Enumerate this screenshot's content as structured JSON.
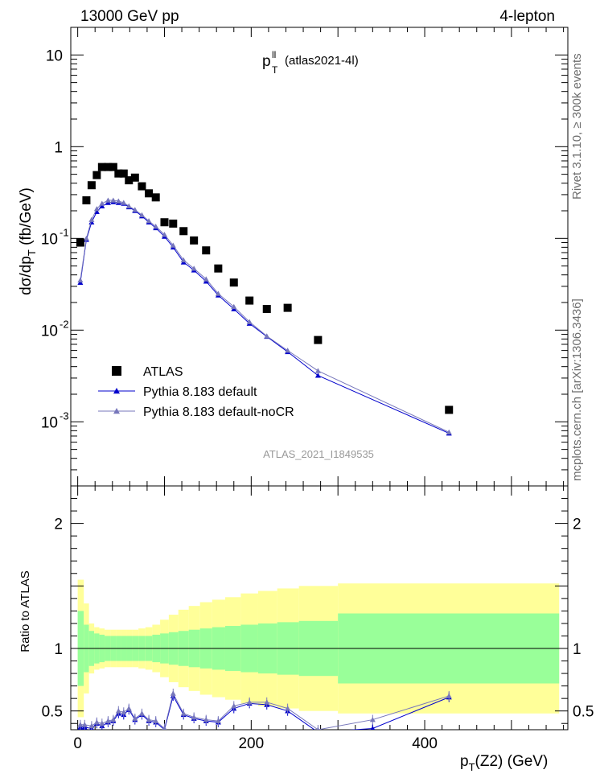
{
  "header": {
    "left": "13000 GeV pp",
    "right": "4-lepton"
  },
  "side": {
    "rivet": "Rivet 3.1.10, ≥ 300k events",
    "mcplots": "mcplots.cern.ch [arXiv:1306.3436]"
  },
  "plot": {
    "title_main": "p",
    "title_sup": "ll",
    "title_sub": "T",
    "title_rest": "(atlas2021-4l)",
    "watermark": "ATLAS_2021_I1849535"
  },
  "chart_data": {
    "type": "scatter",
    "xlabel": "p_T(Z2) (GeV)",
    "ylabel": "dσ/dp_T (fb/GeV)",
    "ratio_ylabel": "Ratio to ATLAS",
    "xlim": [
      -8,
      565
    ],
    "ylim_main": [
      0.0002,
      20
    ],
    "ylim_ratio": [
      0.35,
      2.3
    ],
    "xticks": [
      0,
      200,
      400
    ],
    "yticks_main": [
      {
        "v": 0.001,
        "base": "10",
        "exp": "-3"
      },
      {
        "v": 0.01,
        "base": "10",
        "exp": "-2"
      },
      {
        "v": 0.1,
        "base": "10",
        "exp": "-1"
      },
      {
        "v": 1,
        "base": "1",
        "exp": ""
      },
      {
        "v": 10,
        "base": "10",
        "exp": ""
      }
    ],
    "yticks_ratio": [
      {
        "v": 0.5,
        "label": "0.5"
      },
      {
        "v": 1,
        "label": "1"
      },
      {
        "v": 2,
        "label": "2"
      }
    ],
    "legend": [
      {
        "name": "ATLAS",
        "color": "#000000",
        "marker": "square"
      },
      {
        "name": "Pythia 8.183 default",
        "color": "#0000cc",
        "marker": "triangle"
      },
      {
        "name": "Pythia 8.183 default-noCR",
        "color": "#7777bb",
        "marker": "triangle"
      }
    ],
    "atlas": {
      "x": [
        3,
        10,
        16,
        22,
        28,
        35,
        41,
        47,
        53,
        59,
        66,
        74,
        82,
        90,
        100,
        110,
        122,
        134,
        148,
        162,
        180,
        198,
        218,
        242,
        277,
        428
      ],
      "y": [
        0.09,
        0.26,
        0.38,
        0.49,
        0.6,
        0.6,
        0.6,
        0.51,
        0.51,
        0.43,
        0.46,
        0.37,
        0.31,
        0.28,
        0.15,
        0.145,
        0.12,
        0.095,
        0.074,
        0.047,
        0.033,
        0.021,
        0.017,
        0.0175,
        0.0078,
        0.00135
      ]
    },
    "series": [
      {
        "name": "Pythia 8.183 default",
        "color": "#0000cc",
        "x": [
          3,
          10,
          16,
          22,
          28,
          35,
          41,
          47,
          53,
          59,
          66,
          74,
          82,
          90,
          100,
          110,
          122,
          134,
          148,
          162,
          180,
          198,
          218,
          242,
          277,
          428
        ],
        "y": [
          0.033,
          0.097,
          0.15,
          0.195,
          0.225,
          0.245,
          0.25,
          0.245,
          0.24,
          0.22,
          0.2,
          0.175,
          0.15,
          0.13,
          0.105,
          0.08,
          0.055,
          0.045,
          0.034,
          0.024,
          0.017,
          0.0118,
          0.0085,
          0.0058,
          0.0032,
          0.00075
        ],
        "ratio": [
          0.37,
          0.37,
          0.36,
          0.4,
          0.38,
          0.41,
          0.42,
          0.48,
          0.47,
          0.51,
          0.43,
          0.47,
          0.42,
          0.41,
          0.35,
          0.62,
          0.47,
          0.44,
          0.42,
          0.41,
          0.52,
          0.56,
          0.55,
          0.5,
          0.33,
          0.36,
          0.61
        ]
      },
      {
        "name": "Pythia 8.183 default-noCR",
        "color": "#7777bb",
        "x": [
          3,
          10,
          16,
          22,
          28,
          35,
          41,
          47,
          53,
          59,
          66,
          74,
          82,
          90,
          100,
          110,
          122,
          134,
          148,
          162,
          180,
          198,
          218,
          242,
          277,
          428
        ],
        "y": [
          0.035,
          0.1,
          0.16,
          0.21,
          0.24,
          0.26,
          0.26,
          0.255,
          0.245,
          0.225,
          0.205,
          0.18,
          0.155,
          0.135,
          0.11,
          0.084,
          0.058,
          0.047,
          0.036,
          0.025,
          0.018,
          0.0123,
          0.0086,
          0.006,
          0.0036,
          0.00077
        ],
        "ratio": [
          0.39,
          0.39,
          0.38,
          0.41,
          0.4,
          0.42,
          0.43,
          0.5,
          0.49,
          0.52,
          0.44,
          0.48,
          0.43,
          0.42,
          0.36,
          0.64,
          0.48,
          0.45,
          0.43,
          0.42,
          0.54,
          0.57,
          0.57,
          0.52,
          0.35,
          0.43,
          0.62
        ]
      }
    ],
    "ratio_x": [
      3,
      8,
      16,
      22,
      28,
      35,
      41,
      47,
      53,
      59,
      66,
      74,
      82,
      90,
      100,
      110,
      122,
      134,
      148,
      162,
      180,
      198,
      218,
      242,
      277,
      340,
      428
    ],
    "bands": {
      "edges": [
        0,
        7,
        13,
        19,
        25,
        31,
        38,
        44,
        50,
        56,
        63,
        70,
        78,
        86,
        95,
        105,
        116,
        128,
        141,
        155,
        170,
        188,
        208,
        230,
        255,
        300,
        555
      ],
      "green": [
        0.3,
        0.19,
        0.14,
        0.12,
        0.11,
        0.1,
        0.1,
        0.1,
        0.1,
        0.1,
        0.1,
        0.1,
        0.1,
        0.11,
        0.12,
        0.13,
        0.14,
        0.15,
        0.16,
        0.17,
        0.18,
        0.19,
        0.2,
        0.21,
        0.22,
        0.28
      ],
      "yellow": [
        0.55,
        0.36,
        0.2,
        0.17,
        0.16,
        0.15,
        0.15,
        0.15,
        0.15,
        0.15,
        0.15,
        0.16,
        0.17,
        0.19,
        0.23,
        0.27,
        0.31,
        0.34,
        0.37,
        0.39,
        0.41,
        0.44,
        0.46,
        0.48,
        0.5,
        0.52
      ]
    }
  }
}
